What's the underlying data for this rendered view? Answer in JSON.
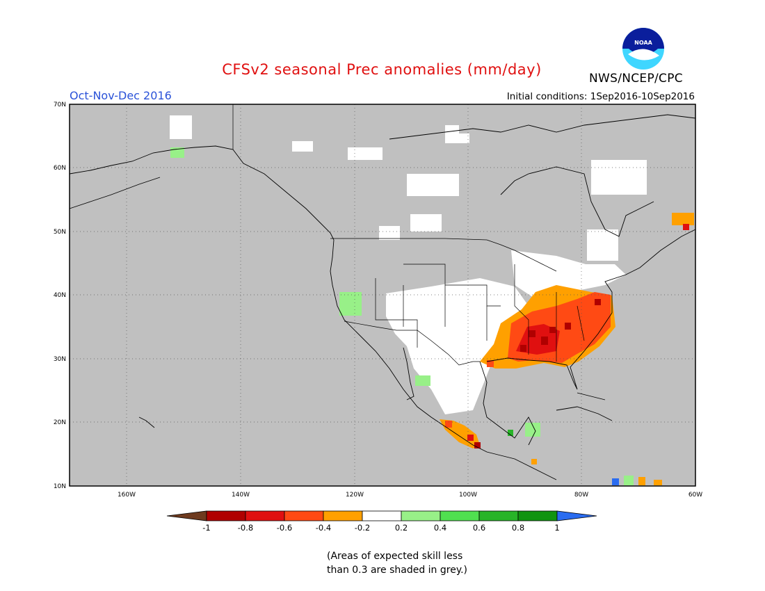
{
  "header": {
    "title": "CFSv2 seasonal Prec anomalies (mm/day)",
    "agency": "NWS/NCEP/CPC",
    "logo_text": "NOAA",
    "season": "Oct-Nov-Dec 2016",
    "initial_conditions": "Initial conditions: 1Sep2016-10Sep2016"
  },
  "map": {
    "lon_labels": [
      "160W",
      "140W",
      "120W",
      "100W",
      "80W",
      "60W"
    ],
    "lat_labels": [
      "70N",
      "60N",
      "50N",
      "40N",
      "30N",
      "20N",
      "10N"
    ],
    "lon_range": [
      -170,
      -60
    ],
    "lat_range": [
      10,
      70
    ],
    "gridlines": "dotted",
    "low_skill_color": "#c0c0c0"
  },
  "colorbar": {
    "ticks": [
      "-1",
      "-0.8",
      "-0.6",
      "-0.4",
      "-0.2",
      "0.2",
      "0.4",
      "0.6",
      "0.8",
      "1"
    ],
    "colors": [
      "#6e3a1e",
      "#b00000",
      "#e01010",
      "#ff4a14",
      "#ffa000",
      "#ffffff",
      "#98f088",
      "#50e050",
      "#28b428",
      "#109410",
      "#2a6cf0"
    ]
  },
  "note": {
    "line1": "(Areas of expected skill less",
    "line2": "than 0.3 are shaded in grey.)"
  }
}
